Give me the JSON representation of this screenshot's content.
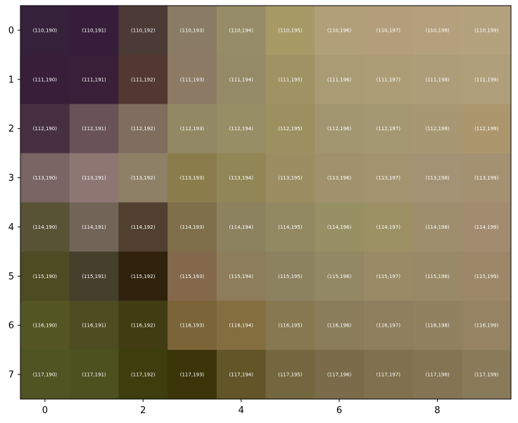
{
  "chart_data": {
    "type": "heatmap",
    "title": "",
    "xlabel": "",
    "ylabel": "",
    "rows": [
      0,
      1,
      2,
      3,
      4,
      5,
      6,
      7
    ],
    "columns": [
      0,
      1,
      2,
      3,
      4,
      5,
      6,
      7,
      8,
      9
    ],
    "x_ticks": [
      "0",
      "2",
      "4",
      "6",
      "8"
    ],
    "y_ticks": [
      "0",
      "1",
      "2",
      "3",
      "4",
      "5",
      "6",
      "7"
    ],
    "xlim": [
      -0.5,
      9.5
    ],
    "ylim": [
      7.5,
      -0.5
    ],
    "grid": false,
    "cell_labels": [
      [
        "(110,190)",
        "(110,191)",
        "(110,192)",
        "(110,193)",
        "(110,194)",
        "(110,195)",
        "(110,196)",
        "(110,197)",
        "(110,198)",
        "(110,199)"
      ],
      [
        "(111,190)",
        "(111,191)",
        "(111,192)",
        "(111,193)",
        "(111,194)",
        "(111,195)",
        "(111,196)",
        "(111,197)",
        "(111,198)",
        "(111,199)"
      ],
      [
        "(112,190)",
        "(112,191)",
        "(112,192)",
        "(112,193)",
        "(112,194)",
        "(112,195)",
        "(112,196)",
        "(112,197)",
        "(112,198)",
        "(112,199)"
      ],
      [
        "(113,190)",
        "(113,191)",
        "(113,192)",
        "(113,193)",
        "(113,194)",
        "(113,195)",
        "(113,196)",
        "(113,197)",
        "(113,198)",
        "(113,199)"
      ],
      [
        "(114,190)",
        "(114,191)",
        "(114,192)",
        "(114,193)",
        "(114,194)",
        "(114,195)",
        "(114,196)",
        "(114,197)",
        "(114,198)",
        "(114,199)"
      ],
      [
        "(115,190)",
        "(115,191)",
        "(115,192)",
        "(115,193)",
        "(115,194)",
        "(115,195)",
        "(115,196)",
        "(115,197)",
        "(115,198)",
        "(115,199)"
      ],
      [
        "(116,190)",
        "(116,191)",
        "(116,192)",
        "(116,193)",
        "(116,194)",
        "(116,195)",
        "(116,196)",
        "(116,197)",
        "(116,198)",
        "(116,199)"
      ],
      [
        "(117,190)",
        "(117,191)",
        "(117,192)",
        "(117,193)",
        "(117,194)",
        "(117,195)",
        "(117,196)",
        "(117,197)",
        "(117,198)",
        "(117,199)"
      ]
    ],
    "cell_colors": [
      [
        "#35213a",
        "#361e3b",
        "#4c3a37",
        "#8a7c64",
        "#968d68",
        "#a79a67",
        "#b19f79",
        "#b29e7a",
        "#b4a07d",
        "#b4a27f"
      ],
      [
        "#391e3a",
        "#3a1f38",
        "#523830",
        "#8c7a65",
        "#958a67",
        "#9f9263",
        "#a99c74",
        "#ac9d76",
        "#ad9d79",
        "#b09f7b"
      ],
      [
        "#463040",
        "#695258",
        "#7f6e5d",
        "#928863",
        "#968e64",
        "#9c9061",
        "#a19670",
        "#a49873",
        "#a79873",
        "#ac966e"
      ],
      [
        "#7a6464",
        "#8e7772",
        "#8e8066",
        "#8a7c4b",
        "#918656",
        "#9b8e63",
        "#9f926c",
        "#a39470",
        "#a49274",
        "#a49172"
      ],
      [
        "#585335",
        "#726456",
        "#51402f",
        "#7f6e4a",
        "#8c8260",
        "#928962",
        "#989065",
        "#9c9065",
        "#9f8e6d",
        "#a28c70"
      ],
      [
        "#4c4b22",
        "#44402c",
        "#30220d",
        "#83684b",
        "#8e7d5a",
        "#8d8260",
        "#928863",
        "#988b65",
        "#998a67",
        "#9c8868"
      ],
      [
        "#535623",
        "#4e4c21",
        "#423c13",
        "#7a6438",
        "#846d3e",
        "#86784f",
        "#8a7d5b",
        "#8e7f5e",
        "#908160",
        "#958364"
      ],
      [
        "#4e5422",
        "#4d5120",
        "#3d3d0e",
        "#3b3409",
        "#625528",
        "#74673f",
        "#7a6c4a",
        "#7f714e",
        "#837453",
        "#897b5a"
      ]
    ]
  }
}
